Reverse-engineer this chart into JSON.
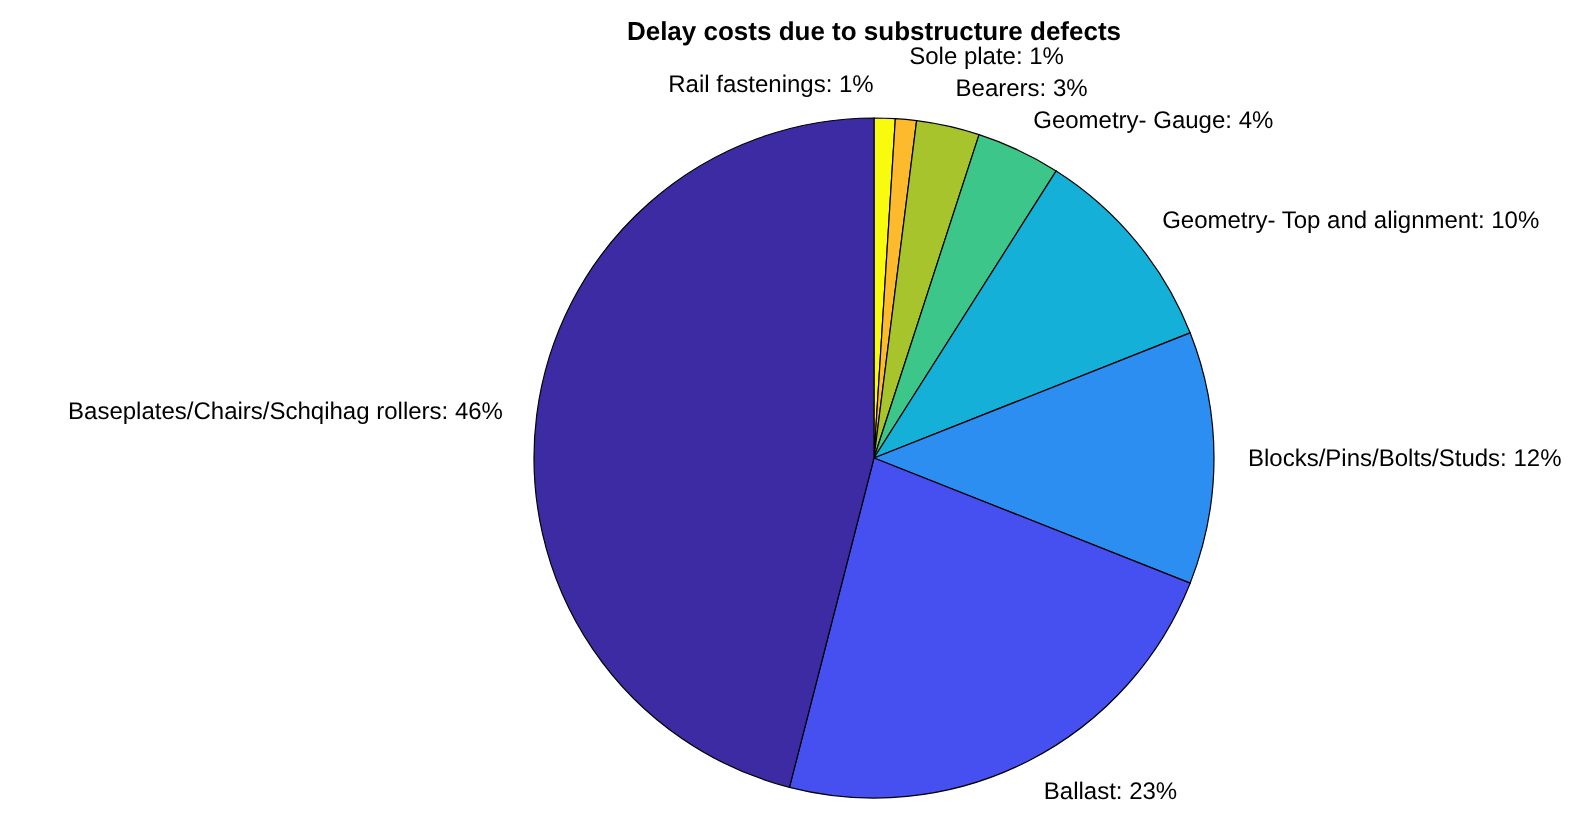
{
  "chart_data": {
    "type": "pie",
    "title": "Delay costs due to substructure defects",
    "categories": [
      "Rail fastenings: 1%",
      "Sole plate: 1%",
      "Bearers: 3%",
      "Geometry- Gauge: 4%",
      "Geometry- Top and alignment: 10%",
      "Blocks/Pins/Bolts/Studs: 12%",
      "Ballast: 23%",
      "Baseplates/Chairs/Schqihag rollers: 46%"
    ],
    "values": [
      1,
      1,
      3,
      4,
      10,
      12,
      23,
      46
    ],
    "colors": [
      "#f9fb0e",
      "#fdba2c",
      "#a8c42c",
      "#3cc68a",
      "#14b0d8",
      "#2b8ef0",
      "#4650f0",
      "#3d2ba3"
    ],
    "data_labels": false
  }
}
